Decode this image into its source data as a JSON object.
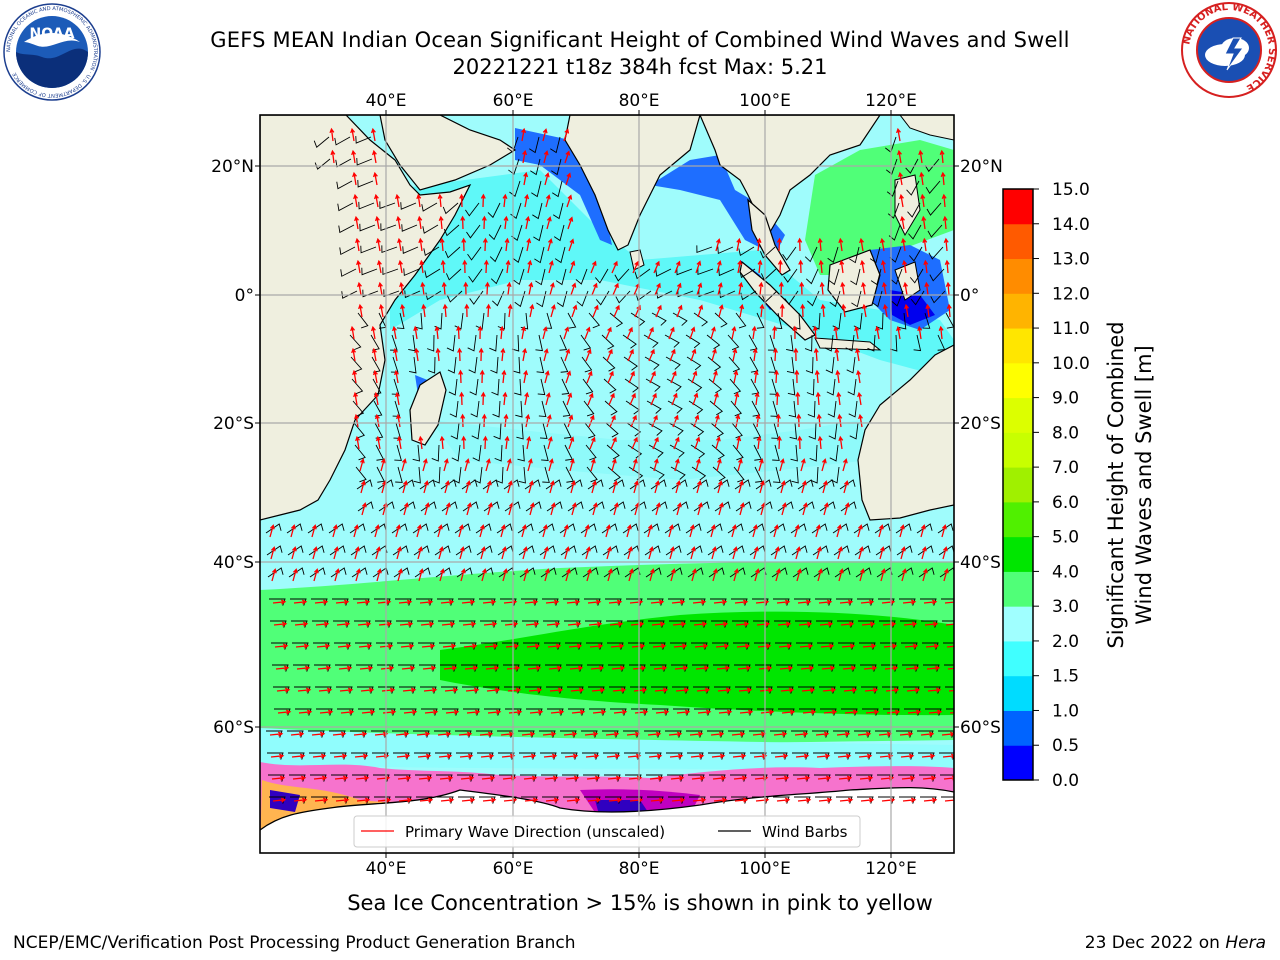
{
  "header": {
    "title_line1": "GEFS MEAN Indian Ocean Significant Height of Combined Wind Waves and Swell",
    "title_line2": "20221221 t18z 384h fcst   Max: 5.21"
  },
  "logos": {
    "noaa": {
      "text": "NOAA",
      "ring_text": "NATIONAL OCEANIC AND ATMOSPHERIC ADMINISTRATION · U.S. DEPARTMENT OF COMMERCE",
      "icon": "noaa-logo"
    },
    "nws": {
      "ring_text": "NATIONAL WEATHER SERVICE",
      "icon": "nws-logo"
    }
  },
  "map": {
    "lon_ticks": [
      "40°E",
      "60°E",
      "80°E",
      "100°E",
      "120°E"
    ],
    "lat_ticks": [
      "20°N",
      "0°",
      "20°S",
      "40°S",
      "60°S"
    ],
    "legend": {
      "wave": "Primary Wave Direction (unscaled)",
      "wind": "Wind Barbs"
    },
    "colors": {
      "land": "#efefdf",
      "ocean_low": "#7dfcfc",
      "wave_arrow": "#ff0000",
      "barb": "#000000"
    }
  },
  "colorbar": {
    "label_line1": "Significant Height of Combined",
    "label_line2": "Wind Waves and Swell [m]",
    "ticks": [
      "0.0",
      "0.5",
      "1.0",
      "1.5",
      "2.0",
      "3.0",
      "4.0",
      "5.0",
      "6.0",
      "7.0",
      "8.0",
      "9.0",
      "10.0",
      "11.0",
      "12.0",
      "13.0",
      "14.0",
      "15.0"
    ],
    "colors": [
      "#0000ff",
      "#0064ff",
      "#00dcff",
      "#40ffff",
      "#a0ffff",
      "#50ff78",
      "#00e600",
      "#50f000",
      "#a0f000",
      "#c8ff00",
      "#dcff00",
      "#ffff00",
      "#ffe600",
      "#ffb400",
      "#ff8c00",
      "#ff5a00",
      "#ff0000"
    ]
  },
  "footer": {
    "caption": "Sea Ice Concentration > 15% is shown in pink to yellow",
    "left": "NCEP/EMC/Verification Post Processing Product Generation Branch",
    "right_date": "23 Dec 2022 on ",
    "right_host": "Hera"
  }
}
